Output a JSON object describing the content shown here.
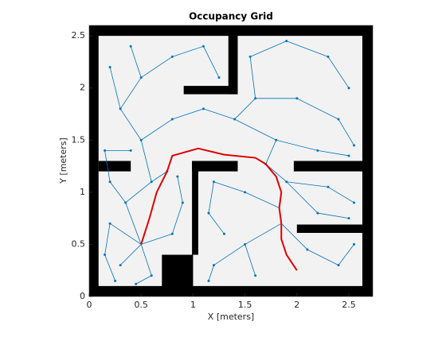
{
  "chart_data": {
    "type": "occupancy",
    "title": "Occupancy Grid",
    "x_label": "X [meters]",
    "y_label": "Y [meters]",
    "xlim": [
      0,
      2.73
    ],
    "ylim": [
      0,
      2.6
    ],
    "xticks": [
      0,
      0.5,
      1,
      1.5,
      2,
      2.5
    ],
    "yticks": [
      0,
      0.5,
      1,
      1.5,
      2,
      2.5
    ],
    "free_color": "#f2f2f2",
    "obstacle_color": "#000000",
    "obstacles": [
      [
        0,
        0,
        0.09,
        2.6
      ],
      [
        0,
        2.5,
        2.73,
        0.1
      ],
      [
        2.63,
        0,
        0.1,
        2.6
      ],
      [
        0,
        0,
        2.73,
        0.1
      ],
      [
        1.34,
        1.94,
        0.09,
        0.66
      ],
      [
        0.91,
        1.94,
        0.52,
        0.08
      ],
      [
        0.09,
        1.2,
        0.31,
        0.1
      ],
      [
        0.99,
        0.4,
        0.06,
        0.9
      ],
      [
        0.99,
        1.2,
        0.44,
        0.1
      ],
      [
        0.7,
        0,
        0.3,
        0.4
      ],
      [
        1.97,
        1.2,
        0.66,
        0.1
      ],
      [
        2.0,
        0.61,
        0.63,
        0.08
      ]
    ],
    "tree_color": "#0072bd",
    "tree_edges": [
      [
        0.5,
        0.5,
        0.3,
        0.3
      ],
      [
        0.5,
        0.5,
        0.2,
        0.7
      ],
      [
        0.5,
        0.5,
        0.6,
        0.2
      ],
      [
        0.5,
        0.5,
        0.35,
        0.9
      ],
      [
        0.35,
        0.9,
        0.2,
        1.1
      ],
      [
        0.35,
        0.9,
        0.6,
        1.1
      ],
      [
        0.6,
        1.1,
        0.5,
        1.5
      ],
      [
        0.5,
        1.5,
        0.3,
        1.8
      ],
      [
        0.5,
        1.5,
        0.8,
        1.7
      ],
      [
        0.3,
        1.8,
        0.2,
        2.2
      ],
      [
        0.3,
        1.8,
        0.5,
        2.1
      ],
      [
        0.5,
        2.1,
        0.4,
        2.4
      ],
      [
        0.5,
        2.1,
        0.8,
        2.3
      ],
      [
        0.8,
        2.3,
        1.1,
        2.4
      ],
      [
        1.1,
        2.4,
        1.25,
        2.1
      ],
      [
        0.8,
        1.7,
        1.1,
        1.8
      ],
      [
        1.1,
        1.8,
        1.4,
        1.7
      ],
      [
        1.4,
        1.7,
        1.6,
        1.9
      ],
      [
        1.6,
        1.9,
        1.55,
        2.3
      ],
      [
        1.55,
        2.3,
        1.9,
        2.45
      ],
      [
        1.9,
        2.45,
        2.3,
        2.3
      ],
      [
        2.3,
        2.3,
        2.5,
        2.0
      ],
      [
        1.6,
        1.9,
        2.0,
        1.9
      ],
      [
        2.0,
        1.9,
        2.4,
        1.7
      ],
      [
        2.4,
        1.7,
        2.55,
        1.45
      ],
      [
        1.4,
        1.7,
        1.8,
        1.5
      ],
      [
        1.8,
        1.5,
        2.2,
        1.4
      ],
      [
        2.2,
        1.4,
        2.5,
        1.35
      ],
      [
        1.8,
        1.5,
        1.7,
        1.27
      ],
      [
        1.7,
        1.27,
        1.9,
        1.1
      ],
      [
        1.9,
        1.1,
        2.3,
        1.05
      ],
      [
        2.3,
        1.05,
        2.55,
        0.9
      ],
      [
        1.9,
        1.1,
        2.2,
        0.8
      ],
      [
        2.2,
        0.8,
        2.5,
        0.75
      ],
      [
        1.85,
        0.7,
        2.1,
        0.45
      ],
      [
        2.1,
        0.45,
        2.4,
        0.3
      ],
      [
        2.4,
        0.3,
        2.55,
        0.5
      ],
      [
        1.85,
        0.7,
        1.5,
        0.5
      ],
      [
        1.5,
        0.5,
        1.2,
        0.3
      ],
      [
        1.2,
        0.3,
        1.15,
        0.15
      ],
      [
        1.5,
        0.5,
        1.6,
        0.2
      ],
      [
        1.83,
        0.85,
        1.5,
        1.0
      ],
      [
        1.5,
        1.0,
        1.2,
        1.1
      ],
      [
        1.2,
        1.1,
        1.15,
        0.8
      ],
      [
        1.15,
        0.8,
        1.3,
        0.6
      ],
      [
        0.5,
        0.5,
        0.8,
        0.6
      ],
      [
        0.8,
        0.6,
        0.9,
        0.9
      ],
      [
        0.9,
        0.9,
        0.85,
        1.15
      ],
      [
        0.2,
        0.7,
        0.15,
        0.4
      ],
      [
        0.15,
        0.4,
        0.25,
        0.15
      ],
      [
        0.6,
        0.2,
        0.45,
        0.12
      ],
      [
        0.2,
        1.1,
        0.15,
        1.4
      ],
      [
        0.15,
        1.4,
        0.4,
        1.4
      ],
      [
        0.6,
        1.1,
        0.75,
        1.2
      ]
    ],
    "path_color": "#e00000",
    "path_x": [
      2.0,
      1.9,
      1.85,
      1.85,
      1.83,
      1.85,
      1.8,
      1.7,
      1.6,
      1.3,
      1.05,
      0.8,
      0.75,
      0.65,
      0.58,
      0.5
    ],
    "path_y": [
      0.25,
      0.4,
      0.55,
      0.7,
      0.85,
      1.0,
      1.15,
      1.27,
      1.33,
      1.36,
      1.42,
      1.35,
      1.2,
      1.0,
      0.75,
      0.5
    ]
  }
}
